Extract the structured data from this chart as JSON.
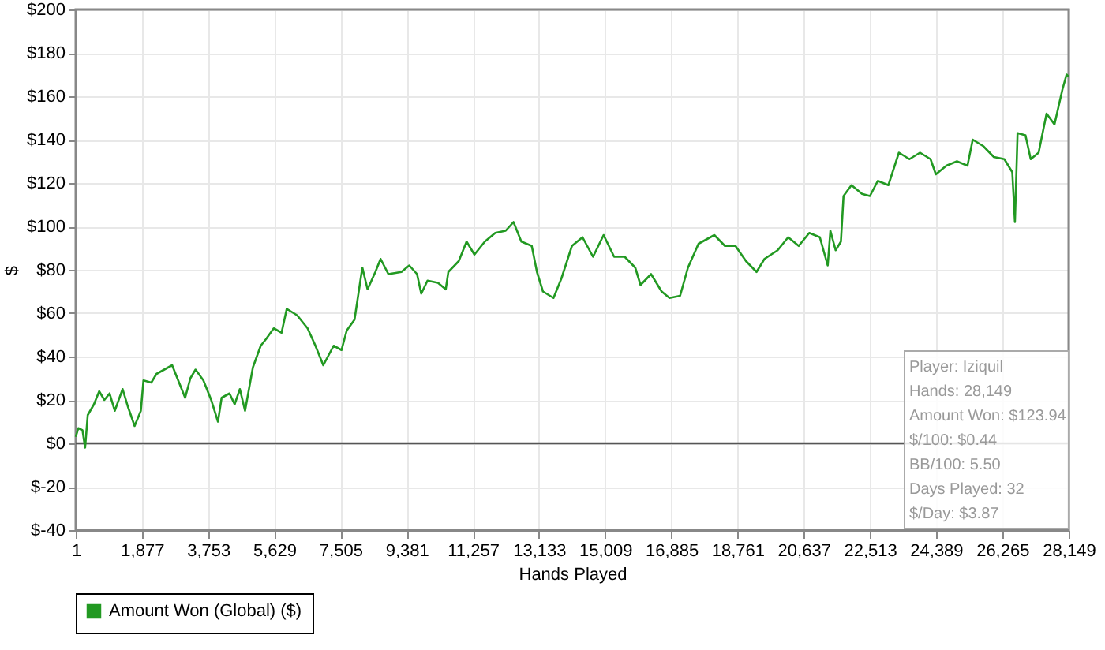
{
  "chart_data": {
    "type": "line",
    "xlabel": "Hands Played",
    "ylabel": "$",
    "xlim": [
      1,
      28149
    ],
    "ylim": [
      -40,
      200
    ],
    "xticks": [
      {
        "value": 1,
        "label": "1"
      },
      {
        "value": 1877,
        "label": "1,877"
      },
      {
        "value": 3753,
        "label": "3,753"
      },
      {
        "value": 5629,
        "label": "5,629"
      },
      {
        "value": 7505,
        "label": "7,505"
      },
      {
        "value": 9381,
        "label": "9,381"
      },
      {
        "value": 11257,
        "label": "11,257"
      },
      {
        "value": 13133,
        "label": "13,133"
      },
      {
        "value": 15009,
        "label": "15,009"
      },
      {
        "value": 16885,
        "label": "16,885"
      },
      {
        "value": 18761,
        "label": "18,761"
      },
      {
        "value": 20637,
        "label": "20,637"
      },
      {
        "value": 22513,
        "label": "22,513"
      },
      {
        "value": 24389,
        "label": "24,389"
      },
      {
        "value": 26265,
        "label": "26,265"
      },
      {
        "value": 28149,
        "label": "28,149"
      }
    ],
    "yticks": [
      {
        "value": -40,
        "label": "$-40"
      },
      {
        "value": -20,
        "label": "$-20"
      },
      {
        "value": 0,
        "label": "$0"
      },
      {
        "value": 20,
        "label": "$20"
      },
      {
        "value": 40,
        "label": "$40"
      },
      {
        "value": 60,
        "label": "$60"
      },
      {
        "value": 80,
        "label": "$80"
      },
      {
        "value": 100,
        "label": "$100"
      },
      {
        "value": 120,
        "label": "$120"
      },
      {
        "value": 140,
        "label": "$140"
      },
      {
        "value": 160,
        "label": "$160"
      },
      {
        "value": 180,
        "label": "$180"
      },
      {
        "value": 200,
        "label": "$200"
      }
    ],
    "grid": true,
    "legend": "bottom left",
    "marker": "none",
    "line_style": "solid",
    "ref_lines": [
      {
        "axis": "y",
        "value": 0,
        "color": "#555555"
      }
    ],
    "annotations": [
      "Player: Iziquil",
      "Hands: 28,149",
      "Amount Won: $123.94",
      "$/100: $0.44",
      "BB/100: 5.50",
      "Days Played: 32",
      "$/Day: $3.87"
    ],
    "series": [
      {
        "name": "Amount Won (Global) ($)",
        "color": "#229922",
        "x": [
          1,
          74,
          192,
          266,
          340,
          517,
          665,
          812,
          960,
          1107,
          1329,
          1477,
          1669,
          1846,
          1920,
          2142,
          2290,
          2511,
          2733,
          2880,
          3102,
          3250,
          3397,
          3619,
          3840,
          4032,
          4136,
          4358,
          4505,
          4653,
          4800,
          5022,
          5244,
          5392,
          5613,
          5835,
          5982,
          6278,
          6573,
          6795,
          7017,
          7312,
          7534,
          7682,
          7903,
          8125,
          8273,
          8494,
          8642,
          8864,
          9233,
          9455,
          9676,
          9795,
          9972,
          10268,
          10489,
          10563,
          10858,
          11080,
          11302,
          11597,
          11893,
          12188,
          12410,
          12632,
          12927,
          13075,
          13245,
          13544,
          13768,
          14067,
          14366,
          14665,
          14964,
          15263,
          15562,
          15861,
          16011,
          16310,
          16609,
          16833,
          17132,
          17356,
          17655,
          18104,
          18403,
          18702,
          19001,
          19300,
          19524,
          19898,
          20197,
          20496,
          20795,
          21094,
          21318,
          21393,
          21542,
          21692,
          21766,
          21991,
          22290,
          22514,
          22738,
          23037,
          23336,
          23635,
          23934,
          24233,
          24383,
          24682,
          24981,
          25280,
          25429,
          25728,
          26027,
          26326,
          26550,
          26625,
          26700,
          26924,
          27073,
          27297,
          27522,
          27746,
          27970,
          28089,
          28149
        ],
        "values": [
          3,
          7,
          6,
          -2,
          13,
          18,
          24,
          20,
          23,
          15,
          25,
          17,
          8,
          15,
          29,
          28,
          32,
          34,
          36,
          30,
          21,
          30,
          34,
          29,
          20,
          10,
          21,
          23,
          18,
          25,
          15,
          35,
          45,
          48,
          53,
          51,
          62,
          59,
          53,
          45,
          36,
          45,
          43,
          52,
          57,
          81,
          71,
          79,
          85,
          78,
          79,
          82,
          78,
          69,
          75,
          74,
          71,
          79,
          84,
          93,
          87,
          93,
          97,
          98,
          102,
          93,
          91,
          79,
          70,
          67,
          76,
          91,
          95,
          86,
          96,
          86,
          86,
          81,
          73,
          78,
          70,
          67,
          68,
          81,
          92,
          96,
          91,
          91,
          84,
          79,
          85,
          89,
          95,
          91,
          97,
          95,
          82,
          98,
          89,
          93,
          114,
          119,
          115,
          114,
          121,
          119,
          134,
          131,
          134,
          131,
          124,
          128,
          130,
          128,
          140,
          137,
          132,
          131,
          125,
          102,
          143,
          142,
          131,
          134,
          152,
          147,
          163,
          170,
          169
        ]
      }
    ]
  }
}
